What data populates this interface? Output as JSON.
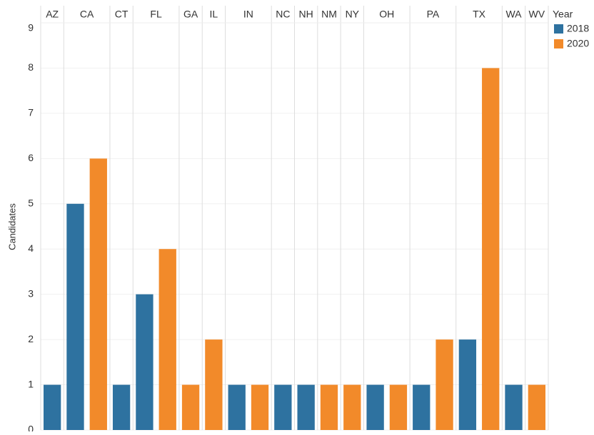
{
  "chart_data": {
    "type": "bar",
    "y_label": "Candidates",
    "legend_title": "Year",
    "categories": [
      "AZ",
      "CA",
      "CT",
      "FL",
      "GA",
      "IL",
      "IN",
      "NC",
      "NH",
      "NM",
      "NY",
      "OH",
      "PA",
      "TX",
      "WA",
      "WV"
    ],
    "series": [
      {
        "name": "2018",
        "color": "#2e72a0",
        "values": [
          1,
          5,
          1,
          3,
          null,
          null,
          1,
          1,
          1,
          null,
          null,
          1,
          1,
          2,
          1,
          null
        ]
      },
      {
        "name": "2020",
        "color": "#f28a2a",
        "values": [
          null,
          6,
          null,
          4,
          1,
          2,
          1,
          null,
          null,
          1,
          1,
          1,
          2,
          8,
          null,
          1
        ]
      }
    ],
    "ylim": [
      0,
      9
    ],
    "yticks": [
      0,
      1,
      2,
      3,
      4,
      5,
      6,
      7,
      8,
      9
    ],
    "grid": true,
    "legend": "right"
  }
}
